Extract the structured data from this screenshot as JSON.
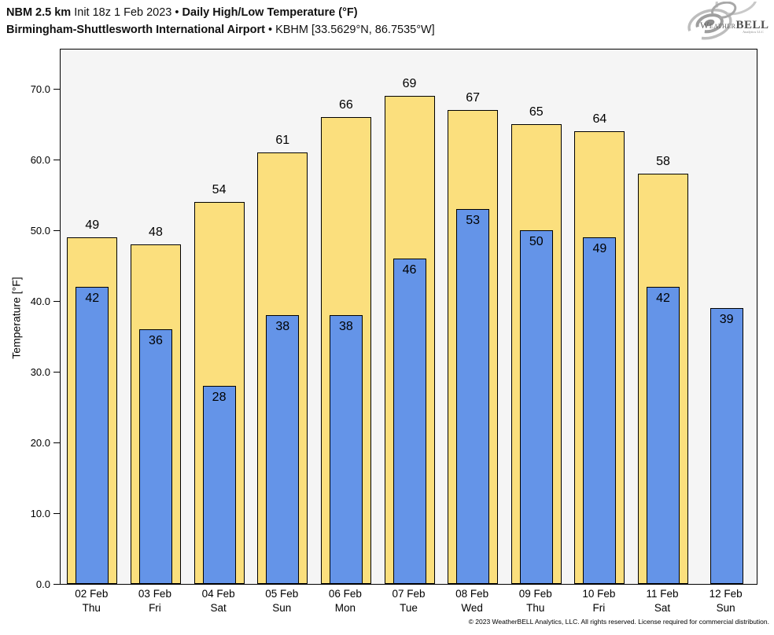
{
  "header": {
    "line1": {
      "model": "NBM 2.5 km",
      "init": "Init 18z 1 Feb 2023",
      "bullet": "•",
      "product": "Daily High/Low Temperature (°F)"
    },
    "line2": {
      "station_name": "Birmingham-Shuttlesworth International Airport",
      "bullet": "•",
      "station_meta": "KBHM [33.5629°N, 86.7535°W]"
    }
  },
  "logo": {
    "weather": "Weather",
    "bell": "BELL",
    "sub": "Analytics LLC"
  },
  "chart_data": {
    "type": "bar",
    "title": "NBM 2.5 km Daily High/Low Temperature (°F) — KBHM",
    "ylabel": "Temperature [°F]",
    "ylim": [
      0,
      75.8
    ],
    "yticks": [
      0,
      10,
      20,
      30,
      40,
      50,
      60,
      70
    ],
    "ytick_labels": [
      "0.0",
      "10.0",
      "20.0",
      "30.0",
      "40.0",
      "50.0",
      "60.0",
      "70.0"
    ],
    "categories": [
      {
        "date": "02 Feb",
        "day": "Thu"
      },
      {
        "date": "03 Feb",
        "day": "Fri"
      },
      {
        "date": "04 Feb",
        "day": "Sat"
      },
      {
        "date": "05 Feb",
        "day": "Sun"
      },
      {
        "date": "06 Feb",
        "day": "Mon"
      },
      {
        "date": "07 Feb",
        "day": "Tue"
      },
      {
        "date": "08 Feb",
        "day": "Wed"
      },
      {
        "date": "09 Feb",
        "day": "Thu"
      },
      {
        "date": "10 Feb",
        "day": "Fri"
      },
      {
        "date": "11 Feb",
        "day": "Sat"
      },
      {
        "date": "12 Feb",
        "day": "Sun"
      }
    ],
    "series": [
      {
        "name": "High",
        "color": "#FBDF7D",
        "values": [
          49,
          48,
          54,
          61,
          66,
          69,
          67,
          65,
          64,
          58,
          null
        ]
      },
      {
        "name": "Low",
        "color": "#6494E8",
        "values": [
          42,
          36,
          28,
          38,
          38,
          46,
          53,
          50,
          49,
          42,
          39
        ]
      }
    ],
    "grid": false,
    "legend": "none",
    "plot_background": "#F5F5F5",
    "bar_outline": "#000000",
    "value_label_color": "#000000"
  },
  "footer": {
    "copyright": "© 2023 WeatherBELL Analytics, LLC. All rights reserved. License required for commercial distribution."
  }
}
